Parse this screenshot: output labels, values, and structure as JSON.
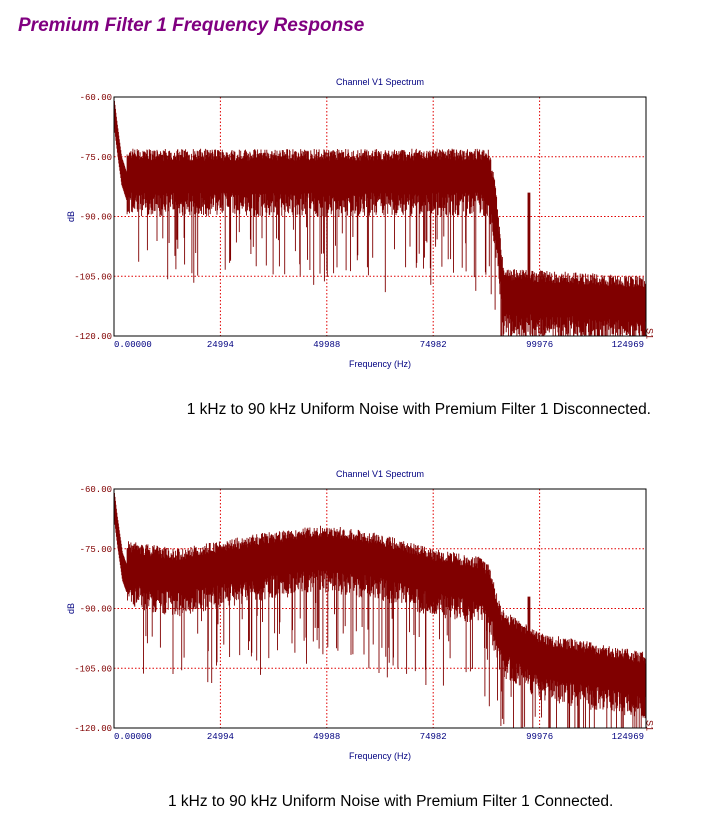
{
  "page_title": "Premium Filter 1 Frequency Response",
  "chart_data": [
    {
      "type": "line",
      "title": "Channel V1 Spectrum",
      "xlabel": "Frequency (Hz)",
      "ylabel": "dB",
      "xlim": [
        0,
        124969
      ],
      "ylim": [
        -120,
        -60
      ],
      "xticks": [
        "0.00000",
        "24994",
        "49988",
        "74982",
        "99976",
        "124969"
      ],
      "xtick_values": [
        0,
        24994,
        49988,
        74982,
        99976,
        124969
      ],
      "yticks": [
        "-60.00",
        "-75.00",
        "-90.00",
        "-105.00",
        "-120.00"
      ],
      "ytick_values": [
        -60,
        -75,
        -90,
        -105,
        -120
      ],
      "series_label": "S1",
      "grid": true,
      "color": "#800000",
      "envelope": [
        [
          0,
          -61
        ],
        [
          800,
          -68
        ],
        [
          1800,
          -76
        ],
        [
          3000,
          -80
        ],
        [
          88000,
          -80
        ],
        [
          89500,
          -88
        ],
        [
          91500,
          -110
        ],
        [
          125000,
          -112
        ]
      ],
      "spike": {
        "freq": 97500,
        "db": -84
      },
      "caption": "1 kHz to 90 kHz Uniform Noise with Premium Filter 1 Disconnected."
    },
    {
      "type": "line",
      "title": "Channel V1 Spectrum",
      "xlabel": "Frequency (Hz)",
      "ylabel": "dB",
      "xlim": [
        0,
        124969
      ],
      "ylim": [
        -120,
        -60
      ],
      "xticks": [
        "0.00000",
        "24994",
        "49988",
        "74982",
        "99976",
        "124969"
      ],
      "xtick_values": [
        0,
        24994,
        49988,
        74982,
        99976,
        124969
      ],
      "yticks": [
        "-60.00",
        "-75.00",
        "-90.00",
        "-105.00",
        "-120.00"
      ],
      "ytick_values": [
        -60,
        -75,
        -90,
        -105,
        -120
      ],
      "series_label": "S1",
      "grid": true,
      "color": "#800000",
      "envelope": [
        [
          0,
          -61
        ],
        [
          800,
          -68
        ],
        [
          2000,
          -77
        ],
        [
          3000,
          -80
        ],
        [
          15000,
          -82
        ],
        [
          35000,
          -78
        ],
        [
          50000,
          -76
        ],
        [
          62000,
          -78
        ],
        [
          75000,
          -82
        ],
        [
          86000,
          -84
        ],
        [
          88000,
          -86
        ],
        [
          91000,
          -97
        ],
        [
          100000,
          -103
        ],
        [
          125000,
          -108
        ]
      ],
      "spike": {
        "freq": 97500,
        "db": -87
      },
      "caption": "1 kHz to 90 kHz Uniform Noise with Premium Filter 1 Connected."
    }
  ]
}
